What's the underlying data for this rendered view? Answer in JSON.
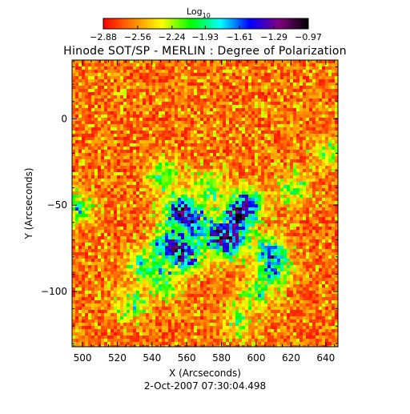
{
  "chart_data": {
    "type": "heatmap",
    "title": "Hinode SOT/SP - MERLIN : Degree of Polarization",
    "xlabel": "X (Arcseconds)",
    "ylabel": "Y (Arcseconds)",
    "date": "2-Oct-2007 07:30:04.498",
    "xlim": [
      494,
      647
    ],
    "ylim": [
      -132,
      34
    ],
    "xticks": [
      500,
      520,
      540,
      560,
      580,
      600,
      620,
      640
    ],
    "xtick_labels": [
      "500",
      "520",
      "540",
      "560",
      "580",
      "600",
      "620",
      "640"
    ],
    "yticks": [
      0,
      -50,
      -100
    ],
    "ytick_labels": [
      "0",
      "−50",
      "−100"
    ],
    "colorbar": {
      "label_base": "Log",
      "label_sub": "10",
      "vmin": -2.88,
      "vmax": -0.97,
      "ticks": [
        -2.88,
        -2.56,
        -2.24,
        -1.93,
        -1.61,
        -1.29,
        -0.97
      ],
      "tick_labels": [
        "−2.88",
        "−2.56",
        "−2.24",
        "−1.93",
        "−1.61",
        "−1.29",
        "−0.97"
      ],
      "colormap": [
        "#ff0000",
        "#ff8000",
        "#ffff00",
        "#00ff00",
        "#00ffff",
        "#0000ff",
        "#800080",
        "#000000"
      ]
    },
    "active_regions": [
      {
        "x": 555,
        "y": -53,
        "strength": 1.0
      },
      {
        "x": 550,
        "y": -73,
        "strength": 0.95
      },
      {
        "x": 560,
        "y": -80,
        "strength": 0.85
      },
      {
        "x": 565,
        "y": -61,
        "strength": 0.8
      },
      {
        "x": 590,
        "y": -57,
        "strength": 1.0
      },
      {
        "x": 585,
        "y": -72,
        "strength": 0.95
      },
      {
        "x": 595,
        "y": -48,
        "strength": 0.7
      },
      {
        "x": 577,
        "y": -68,
        "strength": 0.55
      },
      {
        "x": 608,
        "y": -77,
        "strength": 0.75
      },
      {
        "x": 610,
        "y": -88,
        "strength": 0.6
      },
      {
        "x": 547,
        "y": -33,
        "strength": 0.5
      },
      {
        "x": 573,
        "y": -40,
        "strength": 0.55
      },
      {
        "x": 535,
        "y": -85,
        "strength": 0.6
      },
      {
        "x": 548,
        "y": -95,
        "strength": 0.5
      },
      {
        "x": 497,
        "y": -52,
        "strength": 0.55
      },
      {
        "x": 622,
        "y": -40,
        "strength": 0.4
      },
      {
        "x": 600,
        "y": -101,
        "strength": 0.45
      },
      {
        "x": 528,
        "y": -108,
        "strength": 0.45
      },
      {
        "x": 590,
        "y": -118,
        "strength": 0.35
      },
      {
        "x": 641,
        "y": -20,
        "strength": 0.4
      }
    ]
  }
}
